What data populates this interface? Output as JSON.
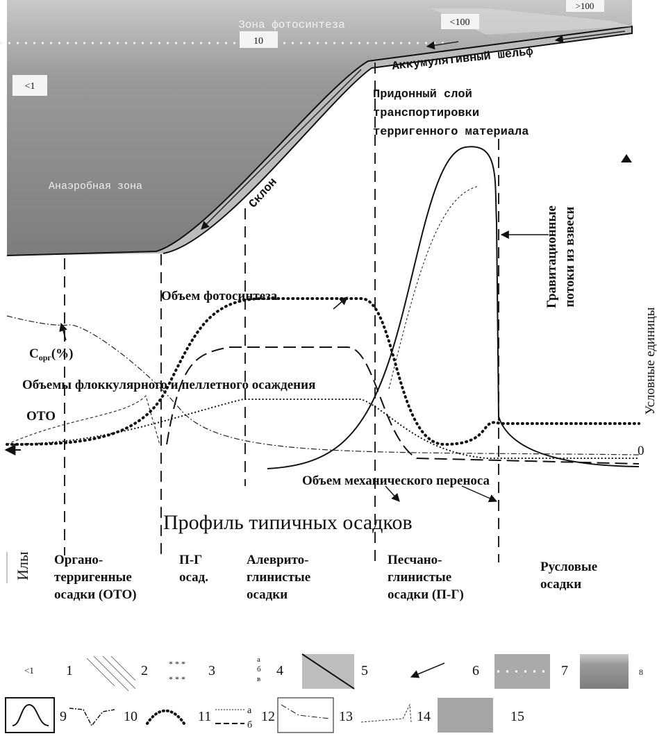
{
  "depth_labels": [
    ">100",
    "<100",
    "10",
    "<1"
  ],
  "zones": {
    "photosynthesis": "Зона фотосинтеза",
    "shelf": "Аккумулятивный шельф",
    "anaerobic": "Анаэробная зона",
    "slope": "Склон"
  },
  "bottom_layer": [
    "Придонный слой",
    "транспортировки",
    "терригенного материала"
  ],
  "gravity_flows": [
    "Гравитационные",
    "потоки из взвеси"
  ],
  "y_axis": {
    "label": "Условные единицы",
    "zero": "0"
  },
  "curves": {
    "photosynthesis": "Объем фотосинтеза",
    "corg": {
      "main": "C",
      "sub": "орг",
      "suffix": "(%)"
    },
    "flocculation": "Объемы флоккулярного и пеллетного осаждения",
    "oto": "ОТО",
    "mechanical": "Объем механического переноса"
  },
  "profile": {
    "title": "Профиль типичных осадков",
    "silts": "Илы",
    "sediments": [
      [
        "Органо-",
        "терригенные",
        "осадки (ОТО)"
      ],
      [
        "П-Г",
        "осад."
      ],
      [
        "Алеврито-",
        "глинистые",
        "осадки"
      ],
      [
        "Песчано-",
        "глинистые",
        "осадки (П-Г)"
      ],
      [
        "Русловые",
        "осадки"
      ]
    ]
  },
  "legend": {
    "row1": [
      "<1",
      "1",
      "2",
      "3",
      "а",
      "б",
      "в",
      "4",
      "5",
      "6",
      "7",
      "8"
    ],
    "row2": [
      "9",
      "10",
      "11",
      "а",
      "б",
      "12",
      "13",
      "14",
      "15"
    ]
  }
}
